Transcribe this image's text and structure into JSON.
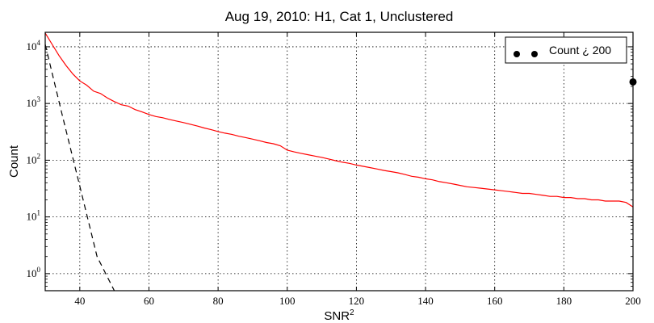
{
  "chart_data": {
    "type": "line",
    "title": "Aug 19, 2010: H1, Cat 1, Unclustered",
    "xlabel": "SNR",
    "xlabel_sup": "2",
    "ylabel": "Count",
    "xlim": [
      30,
      200
    ],
    "ylim": [
      0.5,
      18000
    ],
    "yscale": "log",
    "grid": true,
    "legend_position": "top-right",
    "x_ticks": [
      40,
      60,
      80,
      100,
      120,
      140,
      160,
      180,
      200
    ],
    "y_ticks": [
      {
        "value": 1,
        "base": "10",
        "exp": "0"
      },
      {
        "value": 10,
        "base": "10",
        "exp": "1"
      },
      {
        "value": 100,
        "base": "10",
        "exp": "2"
      },
      {
        "value": 1000,
        "base": "10",
        "exp": "3"
      },
      {
        "value": 10000,
        "base": "10",
        "exp": "4"
      }
    ],
    "series": [
      {
        "color": "#ff0000",
        "style": "solid",
        "x": [
          30,
          32,
          34,
          36,
          38,
          40,
          42,
          44,
          46,
          48,
          50,
          52,
          54,
          56,
          58,
          60,
          62,
          64,
          66,
          68,
          70,
          72,
          74,
          76,
          78,
          80,
          82,
          84,
          86,
          88,
          90,
          92,
          94,
          96,
          98,
          100,
          102,
          104,
          106,
          108,
          110,
          112,
          114,
          116,
          118,
          120,
          122,
          124,
          126,
          128,
          130,
          132,
          134,
          136,
          138,
          140,
          142,
          144,
          146,
          148,
          150,
          152,
          154,
          156,
          158,
          160,
          162,
          164,
          166,
          168,
          170,
          172,
          174,
          176,
          178,
          180,
          182,
          184,
          186,
          188,
          190,
          192,
          194,
          196,
          198,
          200
        ],
        "y": [
          17500,
          11000,
          7000,
          4700,
          3300,
          2500,
          2100,
          1650,
          1500,
          1250,
          1080,
          950,
          900,
          780,
          710,
          640,
          590,
          560,
          520,
          490,
          460,
          430,
          400,
          370,
          345,
          320,
          300,
          285,
          265,
          250,
          235,
          220,
          205,
          195,
          180,
          150,
          140,
          132,
          125,
          118,
          112,
          105,
          98,
          92,
          88,
          82,
          78,
          74,
          70,
          66,
          63,
          60,
          56,
          52,
          50,
          47,
          45,
          42,
          40,
          38,
          36,
          34,
          33,
          32,
          31,
          30,
          29,
          28,
          27,
          26,
          26,
          25,
          24,
          23,
          23,
          22,
          22,
          21,
          21,
          20,
          20,
          19,
          19,
          19,
          18,
          15
        ]
      },
      {
        "color": "#000000",
        "style": "dashed",
        "x": [
          30,
          35,
          40,
          45,
          50
        ],
        "y": [
          11000,
          600,
          35,
          2,
          0.5
        ]
      }
    ],
    "points": {
      "label": "Count ¿ 200",
      "x": [
        200
      ],
      "y": [
        2400
      ]
    }
  }
}
